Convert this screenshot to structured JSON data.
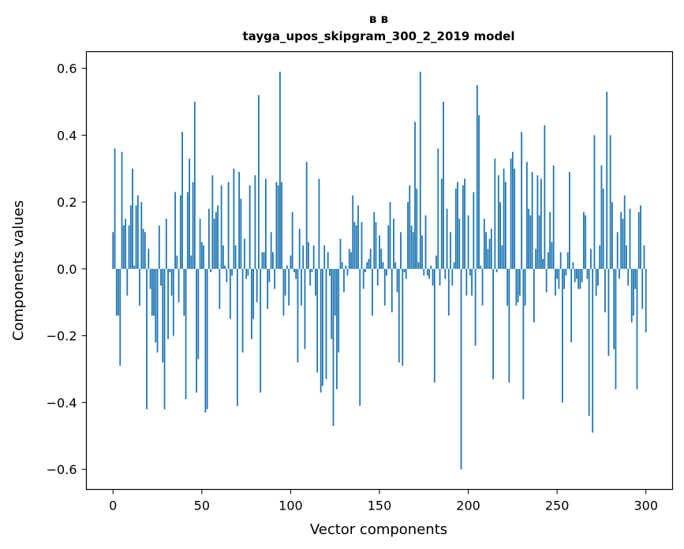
{
  "chart_data": {
    "type": "bar",
    "title": "в в\ntayga_upos_skipgram_300_2_2019 model",
    "xlabel": "Vector components",
    "ylabel": "Components values",
    "xlim": [
      -15,
      315
    ],
    "ylim": [
      -0.66,
      0.65
    ],
    "xticks": [
      0,
      50,
      100,
      150,
      200,
      250,
      300
    ],
    "yticks": [
      -0.6,
      -0.4,
      -0.2,
      0.0,
      0.2,
      0.4,
      0.6
    ],
    "ytick_labels": [
      "−0.6",
      "−0.4",
      "−0.2",
      "0.0",
      "0.2",
      "0.4",
      "0.6"
    ],
    "grid": false,
    "color": "#1f77b4",
    "values": [
      0.11,
      0.36,
      -0.14,
      -0.14,
      -0.29,
      0.35,
      0.13,
      0.15,
      -0.08,
      0.13,
      0.19,
      0.3,
      0.01,
      0.19,
      0.22,
      -0.11,
      0.2,
      0.12,
      0.11,
      -0.42,
      0.06,
      -0.06,
      -0.14,
      -0.14,
      -0.22,
      -0.25,
      0.13,
      -0.05,
      -0.28,
      -0.42,
      0.15,
      -0.21,
      -0.01,
      -0.08,
      -0.2,
      0.23,
      0.04,
      -0.1,
      0.22,
      0.41,
      -0.14,
      -0.39,
      0.23,
      0.33,
      0.04,
      0.26,
      0.5,
      -0.37,
      -0.27,
      0.15,
      0.08,
      0.07,
      -0.43,
      -0.42,
      0.18,
      -0.01,
      0.28,
      0.15,
      0.17,
      0.19,
      -0.12,
      0.25,
      0.07,
      0.01,
      -0.04,
      0.26,
      -0.15,
      -0.02,
      0.3,
      0.07,
      -0.41,
      0.29,
      0.21,
      -0.25,
      0.09,
      -0.03,
      -0.02,
      0.25,
      -0.21,
      -0.15,
      0.28,
      -0.1,
      0.52,
      -0.37,
      0.05,
      0.05,
      0.27,
      -0.12,
      -0.04,
      0.11,
      0.05,
      -0.06,
      0.26,
      0.25,
      0.59,
      0.26,
      -0.14,
      -0.08,
      0.01,
      -0.11,
      0.04,
      0.17,
      -0.01,
      -0.03,
      -0.28,
      0.12,
      -0.11,
      0.07,
      -0.24,
      0.32,
      0.08,
      -0.05,
      -0.01,
      0.07,
      -0.08,
      -0.31,
      0.27,
      -0.37,
      -0.35,
      0.07,
      -0.33,
      0.05,
      -0.02,
      -0.21,
      -0.47,
      -0.14,
      -0.36,
      -0.25,
      0.09,
      0.02,
      -0.07,
      0.01,
      -0.02,
      0.06,
      0.05,
      0.22,
      0.14,
      0.13,
      0.19,
      -0.41,
      0.14,
      -0.06,
      -0.01,
      0.02,
      0.03,
      0.06,
      -0.14,
      0.17,
      0.14,
      -0.05,
      0.1,
      0.06,
      0.02,
      -0.11,
      -0.02,
      0.13,
      0.2,
      -0.13,
      0.15,
      0.02,
      -0.07,
      -0.28,
      0.11,
      -0.29,
      -0.01,
      -0.03,
      0.2,
      0.25,
      0.13,
      0.11,
      0.44,
      0.24,
      0.02,
      0.59,
      0.1,
      -0.02,
      0.16,
      -0.02,
      -0.03,
      0.01,
      -0.05,
      -0.34,
      0.04,
      0.36,
      -0.05,
      0.27,
      0.5,
      -0.03,
      0.18,
      -0.14,
      0.11,
      -0.05,
      0.02,
      0.24,
      0.26,
      0.15,
      -0.6,
      0.25,
      0.27,
      -0.08,
      0.16,
      -0.02,
      -0.08,
      0.23,
      -0.23,
      0.55,
      0.46,
      0.01,
      -0.11,
      0.15,
      0.11,
      0.06,
      0.09,
      0.12,
      -0.33,
      0.33,
      -0.01,
      0.28,
      0.2,
      0.07,
      0.3,
      0.26,
      -0.11,
      -0.34,
      0.33,
      0.35,
      0.3,
      -0.11,
      -0.1,
      -0.08,
      0.41,
      -0.39,
      -0.11,
      0.32,
      0.18,
      0.16,
      0.29,
      -0.16,
      0.06,
      0.28,
      0.16,
      0.27,
      0.03,
      0.43,
      -0.07,
      0.05,
      0.17,
      0.08,
      0.31,
      -0.08,
      -0.03,
      -0.06,
      0.05,
      -0.4,
      -0.06,
      -0.02,
      0.05,
      0.29,
      -0.22,
      0.02,
      -0.04,
      -0.03,
      -0.06,
      -0.06,
      -0.04,
      0.17,
      0.16,
      -0.03,
      -0.44,
      0.06,
      -0.49,
      0.4,
      -0.08,
      -0.05,
      0.07,
      0.31,
      0.24,
      -0.13,
      0.53,
      -0.26,
      0.4,
      0.2,
      -0.24,
      -0.36,
      0.11,
      -0.03,
      0.17,
      0.15,
      0.22,
      0.07,
      -0.05,
      0.18,
      -0.16,
      -0.14,
      -0.06,
      -0.36,
      0.17,
      0.19,
      -0.12,
      0.07,
      -0.19
    ]
  }
}
